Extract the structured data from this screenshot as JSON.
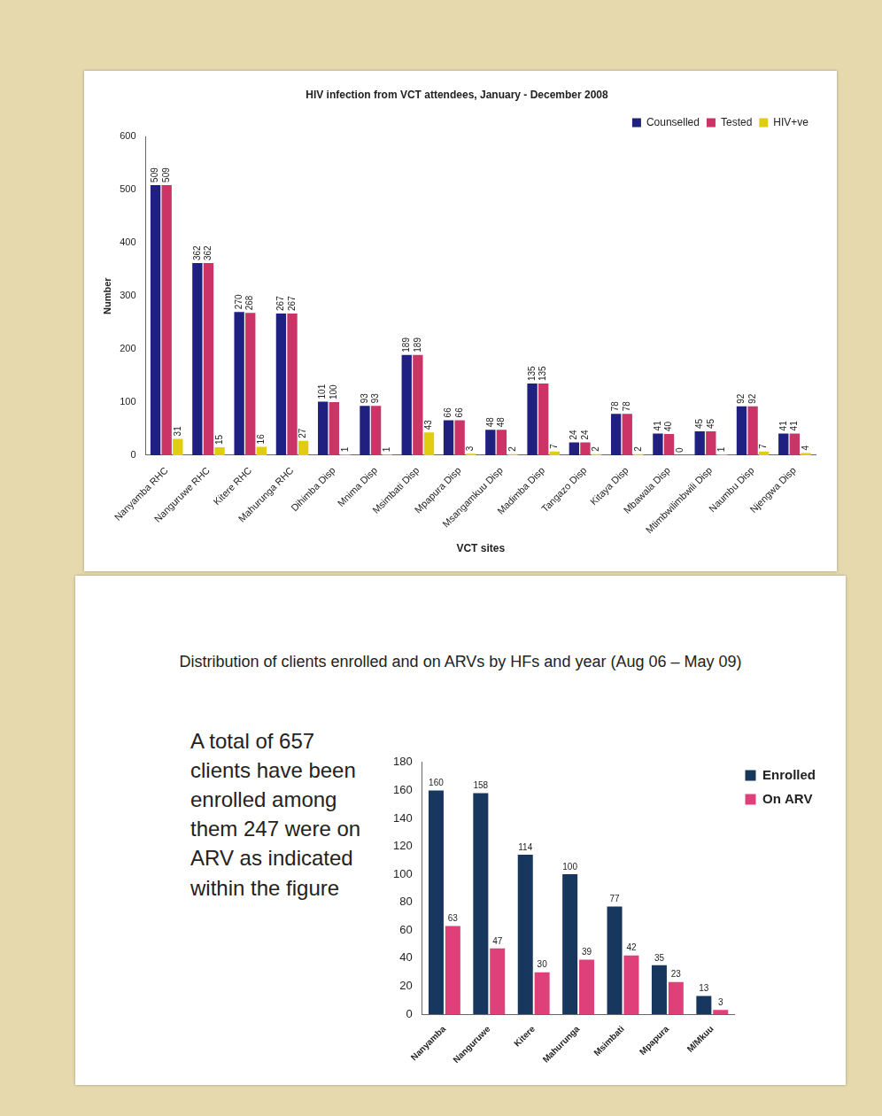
{
  "chart_data": [
    {
      "type": "bar",
      "title": "HIV infection from VCT attendees, January - December 2008",
      "x_label": "VCT sites",
      "y_label": "Number",
      "categories": [
        "Nanyamba RHC",
        "Nanguruwe RHC",
        "Kitere RHC",
        "Mahurunga RHC",
        "Dihimba Disp",
        "Mnima Disp",
        "Msimbati Disp",
        "Mpapura Disp",
        "Msangamkuu Disp",
        "Madimba Disp",
        "Tangazo Disp",
        "Kitaya Disp",
        "Mbawala Disp",
        "Mtimbwilimbwili Disp",
        "Naumbu Disp",
        "Njengwa Disp"
      ],
      "series": [
        {
          "name": "Counselled",
          "color": "#202080",
          "values": [
            509,
            362,
            270,
            267,
            101,
            93,
            189,
            66,
            48,
            135,
            24,
            78,
            41,
            45,
            92,
            41
          ]
        },
        {
          "name": "Tested",
          "color": "#cc3366",
          "values": [
            509,
            362,
            268,
            267,
            100,
            93,
            189,
            66,
            48,
            135,
            24,
            78,
            40,
            45,
            92,
            41
          ]
        },
        {
          "name": "HIV+ve",
          "color": "#e0cc10",
          "values": [
            31,
            15,
            16,
            27,
            1,
            1,
            43,
            3,
            2,
            7,
            2,
            2,
            0,
            1,
            7,
            4
          ]
        }
      ],
      "ylim": [
        0,
        600
      ],
      "yticks": [
        0,
        100,
        200,
        300,
        400,
        500,
        600
      ],
      "grid": false,
      "legend": "top",
      "data_labels": true
    },
    {
      "type": "bar",
      "title": "Distribution of clients enrolled and on ARVs by HFs and year (Aug 06 – May 09)",
      "annotations": [
        "A total of 657 clients have been enrolled among them 247 were on ARV as indicated within the figure"
      ],
      "categories": [
        "Nanyamba",
        "Nanguruwe",
        "Kitere",
        "Mahurunga",
        "Msimbati",
        "Mpapura",
        "M/Mkuu"
      ],
      "series": [
        {
          "name": "Enrolled",
          "color": "#17375e",
          "values": [
            160,
            158,
            114,
            100,
            77,
            35,
            13
          ]
        },
        {
          "name": "On ARV",
          "color": "#e0407a",
          "values": [
            63,
            47,
            30,
            39,
            42,
            23,
            3
          ]
        }
      ],
      "ylim": [
        0,
        180
      ],
      "yticks": [
        0,
        20,
        40,
        60,
        80,
        100,
        120,
        140,
        160,
        180
      ],
      "grid": false,
      "legend": "right",
      "data_labels": true
    }
  ]
}
